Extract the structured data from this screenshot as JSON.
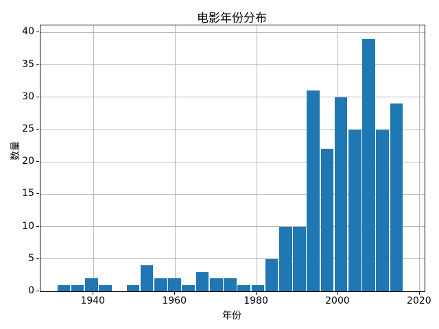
{
  "chart_data": {
    "type": "bar",
    "subtype": "histogram",
    "title": "电影年份分布",
    "xlabel": "年份",
    "ylabel": "数量",
    "bin_edges": [
      1931.0,
      1934.4,
      1937.8,
      1941.2,
      1944.6,
      1948.0,
      1951.4,
      1954.8,
      1958.2,
      1961.6,
      1965.0,
      1968.4,
      1971.8,
      1975.2,
      1978.6,
      1982.0,
      1985.4,
      1988.8,
      1992.2,
      1995.6,
      1999.0,
      2002.4,
      2005.8,
      2009.2,
      2012.6,
      2016.0
    ],
    "counts": [
      1,
      1,
      2,
      1,
      0,
      1,
      4,
      2,
      2,
      1,
      3,
      2,
      2,
      1,
      1,
      5,
      10,
      10,
      31,
      22,
      30,
      25,
      39,
      25,
      29
    ],
    "xticks": [
      1940,
      1960,
      1980,
      2000,
      2020
    ],
    "yticks": [
      0,
      5,
      10,
      15,
      20,
      25,
      30,
      35,
      40
    ],
    "xlim": [
      1927.0,
      2021.2
    ],
    "ylim": [
      0,
      41.1
    ],
    "grid": true,
    "legend": null,
    "bar_color": "#1f77b4",
    "grid_color": "#b8b8b8",
    "spine_color": "#000000",
    "background_color": "#ffffff"
  }
}
